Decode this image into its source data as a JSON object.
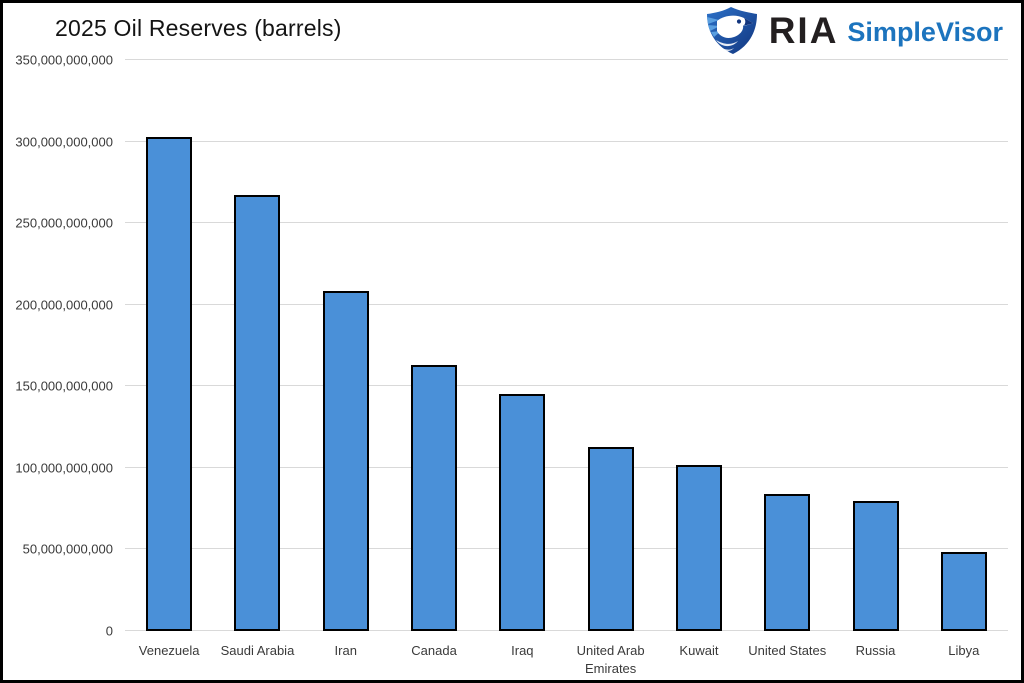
{
  "page": {
    "background": "#ffffff",
    "border_color": "#000000"
  },
  "header": {
    "title": "2025 Oil Reserves (barrels)",
    "logo": {
      "ria_text": "RIA",
      "simplevisor_text": "SimpleVisor",
      "ria_color": "#231f20",
      "simplevisor_color": "#1c74be",
      "eagle_dark": "#12357e",
      "eagle_mid": "#2c71c8",
      "eagle_light": "#5a9fe0"
    }
  },
  "chart_data": {
    "type": "bar",
    "title": "2025 Oil Reserves (barrels)",
    "unit": "barrels",
    "categories": [
      "Venezuela",
      "Saudi Arabia",
      "Iran",
      "Canada",
      "Iraq",
      "United Arab Emirates",
      "Kuwait",
      "United States",
      "Russia",
      "Libya"
    ],
    "values": [
      303000000000,
      267000000000,
      208600000000,
      163000000000,
      145000000000,
      113000000000,
      101500000000,
      84000000000,
      80000000000,
      48400000000
    ],
    "xlabel": "",
    "ylabel": "",
    "ylim": [
      0,
      350000000000
    ],
    "ytick_step": 50000000000,
    "yticks": [
      {
        "value": 0,
        "label": "0"
      },
      {
        "value": 50000000000,
        "label": "50,000,000,000"
      },
      {
        "value": 100000000000,
        "label": "100,000,000,000"
      },
      {
        "value": 150000000000,
        "label": "150,000,000,000"
      },
      {
        "value": 200000000000,
        "label": "200,000,000,000"
      },
      {
        "value": 250000000000,
        "label": "250,000,000,000"
      },
      {
        "value": 300000000000,
        "label": "300,000,000,000"
      },
      {
        "value": 350000000000,
        "label": "350,000,000,000"
      }
    ],
    "grid": true,
    "legend": null,
    "bar_color": "#4a90d8",
    "bar_border_color": "#000000",
    "gridline_color": "#d9d9d9",
    "title_color": "#141414",
    "tick_label_color": "#3a3a3a"
  }
}
